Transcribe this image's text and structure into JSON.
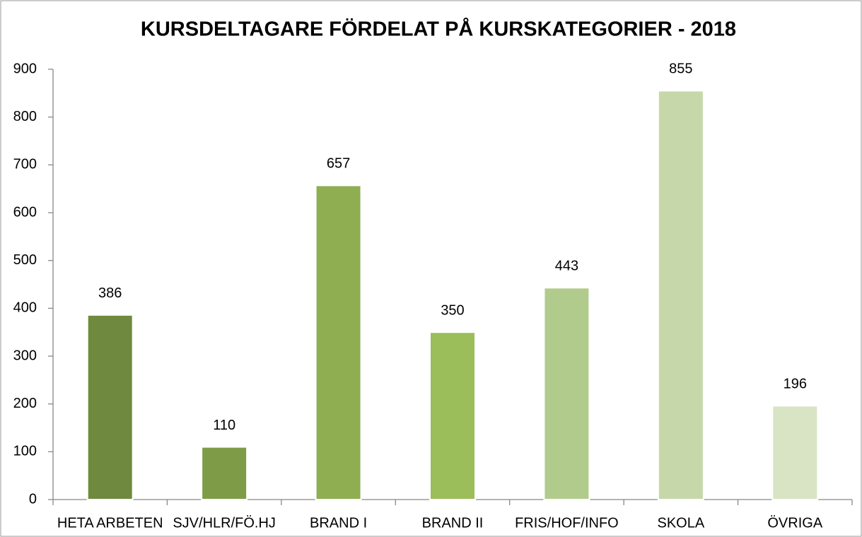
{
  "chart_data": {
    "type": "bar",
    "title": "KURSDELTAGARE FÖRDELAT PÅ KURSKATEGORIER - 2018",
    "categories": [
      "HETA ARBETEN",
      "SJV/HLR/FÖ.HJ",
      "BRAND I",
      "BRAND II",
      "FRIS/HOF/INFO",
      "SKOLA",
      "ÖVRIGA"
    ],
    "values": [
      386,
      110,
      657,
      350,
      443,
      855,
      196
    ],
    "colors": [
      "#6f8a3f",
      "#7e9c48",
      "#8fae52",
      "#9bbd5a",
      "#b1cb8c",
      "#c6d8a9",
      "#d8e4c4"
    ],
    "ylim": [
      0,
      900
    ],
    "yticks": [
      0,
      100,
      200,
      300,
      400,
      500,
      600,
      700,
      800,
      900
    ],
    "grid": false
  }
}
